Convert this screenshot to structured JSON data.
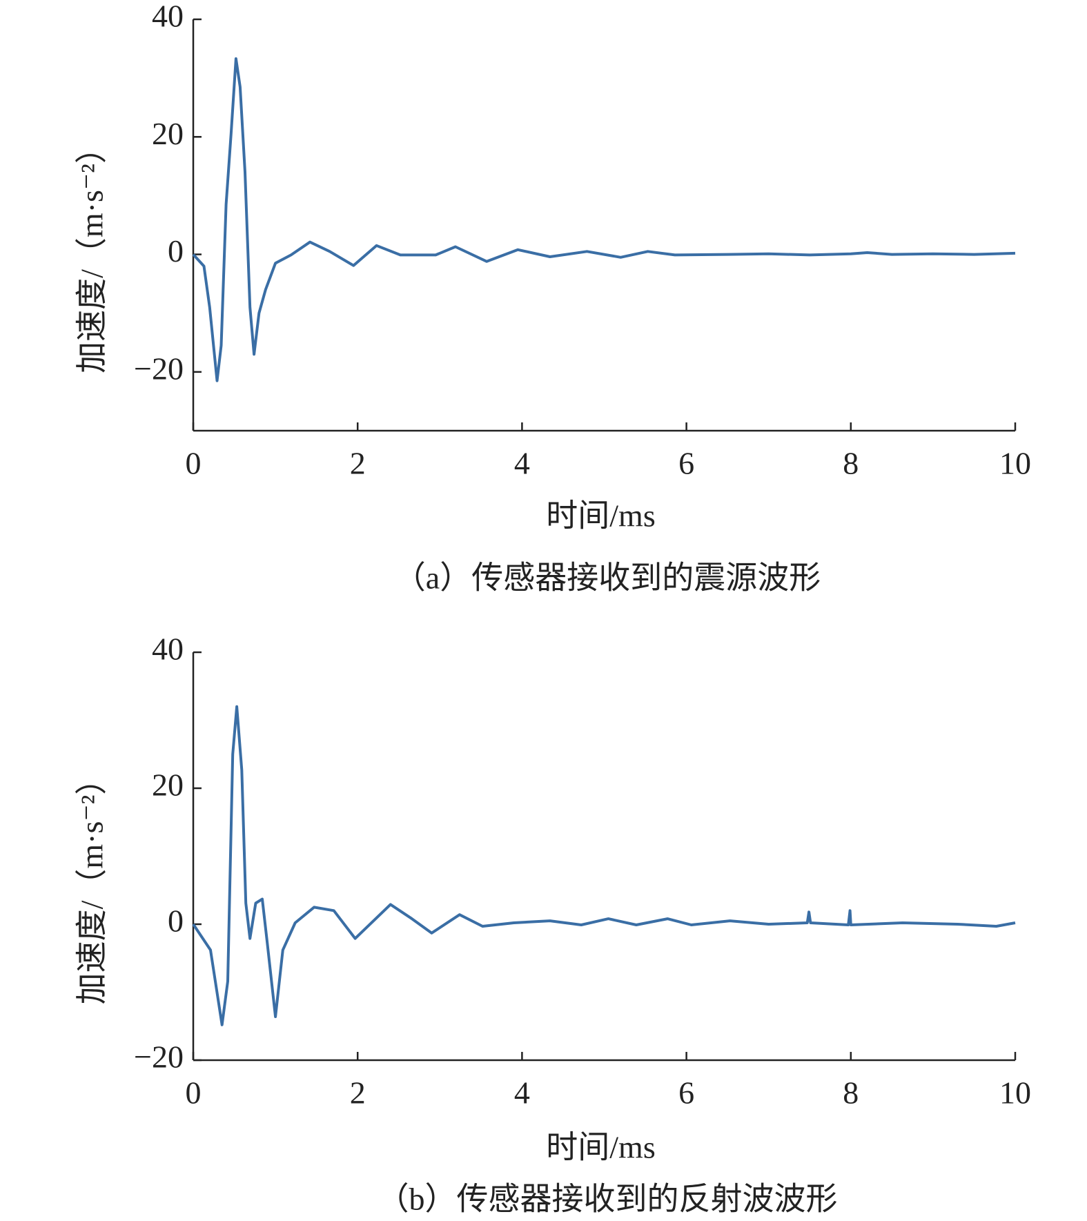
{
  "chart_data": [
    {
      "type": "line",
      "caption": "（a）传感器接收到的震源波形",
      "xlabel": "时间/ms",
      "ylabel": "加速度/（m·s⁻²）",
      "xlim": [
        0,
        10
      ],
      "xticks": [
        0,
        2,
        4,
        6,
        8,
        10
      ],
      "ylim": [
        -30,
        40
      ],
      "yticks": [
        {
          "value": -20,
          "label": "−20"
        },
        0,
        20,
        40
      ],
      "color": "#3a6ea5",
      "x": [
        0,
        0.13,
        0.2,
        0.29,
        0.34,
        0.4,
        0.46,
        0.52,
        0.57,
        0.63,
        0.69,
        0.74,
        0.8,
        0.88,
        1.0,
        1.19,
        1.42,
        1.66,
        1.95,
        2.23,
        2.52,
        2.95,
        3.19,
        3.57,
        3.95,
        4.34,
        4.79,
        5.2,
        5.53,
        5.86,
        6.5,
        7,
        7.5,
        8,
        8.2,
        8.5,
        9,
        9.5,
        10
      ],
      "values": [
        0,
        -2,
        -9,
        -21.5,
        -15.5,
        8.5,
        20.5,
        33.3,
        28.5,
        14,
        -9,
        -17,
        -10,
        -6,
        -1.5,
        -0.1,
        2.1,
        0.5,
        -1.9,
        1.5,
        -0.1,
        -0.1,
        1.3,
        -1.2,
        0.8,
        -0.4,
        0.5,
        -0.5,
        0.5,
        -0.1,
        0,
        0.1,
        -0.1,
        0.1,
        0.3,
        0,
        0.1,
        0,
        0.2
      ]
    },
    {
      "type": "line",
      "caption": "（b）传感器接收到的反射波波形",
      "xlabel": "时间/ms",
      "ylabel": "加速度/（m·s⁻²）",
      "xlim": [
        0,
        10
      ],
      "xticks": [
        0,
        2,
        4,
        6,
        8,
        10
      ],
      "ylim": [
        -20,
        40
      ],
      "yticks": [
        {
          "value": -20,
          "label": "−20"
        },
        0,
        20,
        40
      ],
      "color": "#3a6ea5",
      "x": [
        0,
        0.21,
        0.35,
        0.42,
        0.48,
        0.53,
        0.59,
        0.64,
        0.69,
        0.76,
        0.84,
        0.9,
        1.0,
        1.09,
        1.24,
        1.47,
        1.71,
        1.97,
        2.4,
        2.66,
        2.9,
        3.24,
        3.52,
        3.9,
        4.34,
        4.72,
        5.05,
        5.39,
        5.77,
        6.06,
        6.53,
        7.0,
        7.47,
        7.49,
        7.51,
        7.97,
        7.99,
        8.0,
        8.63,
        9.3,
        9.77,
        10
      ],
      "values": [
        0,
        -3.8,
        -14.8,
        -8.4,
        25,
        32,
        22.7,
        3.1,
        -2.1,
        3.1,
        3.7,
        -2.7,
        -13.6,
        -3.8,
        0.2,
        2.5,
        2,
        -2.1,
        2.9,
        0.8,
        -1.3,
        1.4,
        -0.3,
        0.2,
        0.5,
        -0.1,
        0.8,
        -0.1,
        0.8,
        -0.1,
        0.5,
        0,
        0.2,
        1.8,
        0.2,
        -0.1,
        2,
        -0.1,
        0.2,
        0,
        -0.3,
        0.2
      ]
    }
  ]
}
